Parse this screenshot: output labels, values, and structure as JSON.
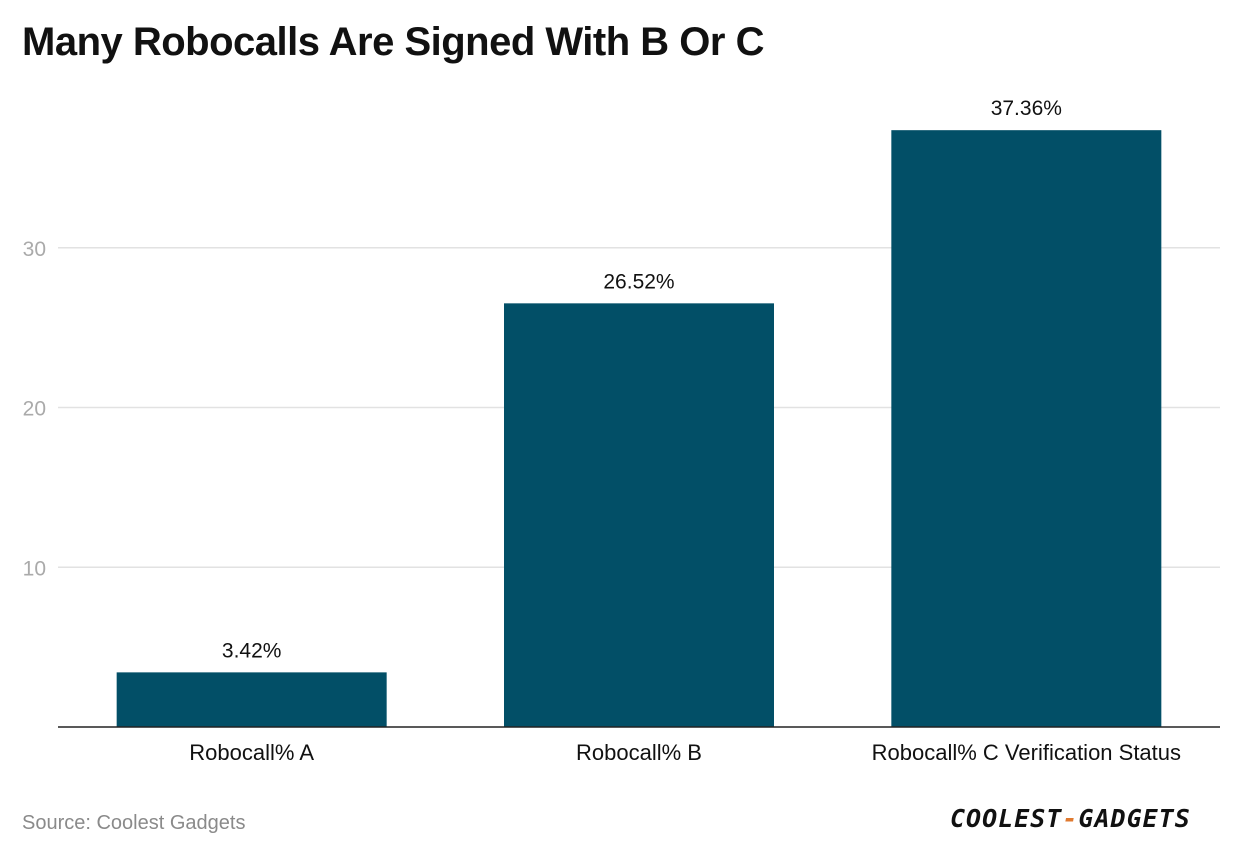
{
  "title": "Many Robocalls Are Signed With B Or C",
  "source": "Source: Coolest Gadgets",
  "logo": {
    "left": "COOLEST",
    "dash": "-",
    "right": "GADGETS"
  },
  "colors": {
    "bar": "#024f67",
    "grid": "#e2e2e2",
    "axis": "#222222",
    "tick": "#aaaaaa"
  },
  "chart_data": {
    "type": "bar",
    "categories": [
      "Robocall% A",
      "Robocall% B",
      "Robocall% C Verification Status"
    ],
    "values": [
      3.42,
      26.52,
      37.36
    ],
    "data_labels": [
      "3.42%",
      "26.52%",
      "37.36%"
    ],
    "title": "Many Robocalls Are Signed With B Or C",
    "xlabel": "",
    "ylabel": "",
    "ylim": [
      0,
      40
    ],
    "yticks": [
      10,
      20,
      30
    ],
    "grid": true,
    "legend": "none"
  }
}
